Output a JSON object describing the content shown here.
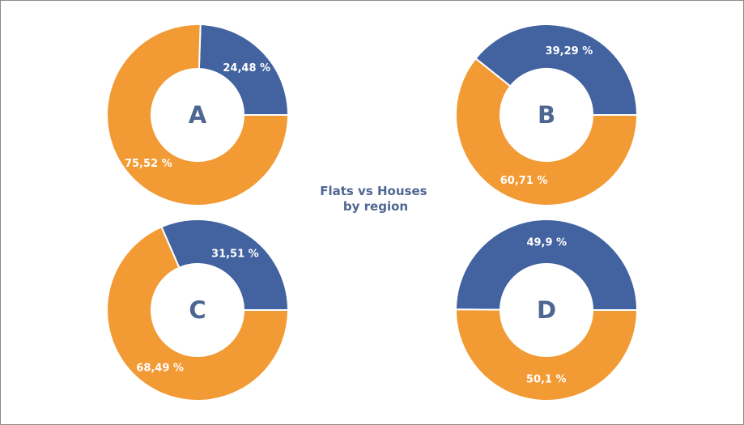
{
  "chart_data": {
    "type": "pie",
    "variant": "donut",
    "title": "",
    "center_title": [
      "Flats vs Houses",
      "by region"
    ],
    "legend": "none",
    "colors": {
      "blue": "#4363a0",
      "orange": "#f29a34"
    },
    "charts": [
      {
        "label": "A",
        "slices": [
          {
            "value": 24.48,
            "label": "24,48 %",
            "color": "#4363a0"
          },
          {
            "value": 75.52,
            "label": "75,52 %",
            "color": "#f29a34"
          }
        ]
      },
      {
        "label": "B",
        "slices": [
          {
            "value": 39.29,
            "label": "39,29 %",
            "color": "#4363a0"
          },
          {
            "value": 60.71,
            "label": "60,71 %",
            "color": "#f29a34"
          }
        ]
      },
      {
        "label": "C",
        "slices": [
          {
            "value": 31.51,
            "label": "31,51 %",
            "color": "#4363a0"
          },
          {
            "value": 68.49,
            "label": "68,49 %",
            "color": "#f29a34"
          }
        ]
      },
      {
        "label": "D",
        "slices": [
          {
            "value": 49.9,
            "label": "49,9 %",
            "color": "#4363a0"
          },
          {
            "value": 50.1,
            "label": "50,1 %",
            "color": "#f29a34"
          }
        ]
      }
    ]
  }
}
